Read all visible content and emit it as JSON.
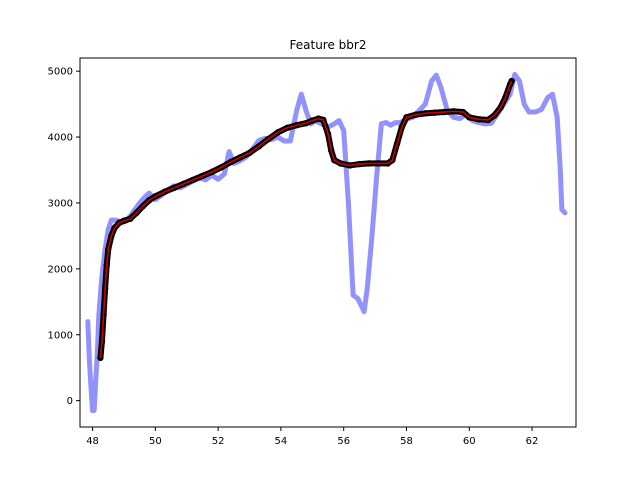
{
  "chart_data": {
    "type": "line",
    "title": "Feature bbr2",
    "xlabel": "",
    "ylabel": "",
    "xlim": [
      47.6,
      63.4
    ],
    "ylim": [
      -400,
      5200
    ],
    "x_ticks": [
      48,
      50,
      52,
      54,
      56,
      58,
      60,
      62
    ],
    "y_ticks": [
      0,
      1000,
      2000,
      3000,
      4000,
      5000
    ],
    "grid": false,
    "legend": "none",
    "series": [
      {
        "style": "raw",
        "color": "#8080ff",
        "points": [
          [
            47.85,
            1200
          ],
          [
            47.9,
            600
          ],
          [
            47.95,
            200
          ],
          [
            48.0,
            -150
          ],
          [
            48.05,
            -150
          ],
          [
            48.1,
            300
          ],
          [
            48.15,
            700
          ],
          [
            48.2,
            1300
          ],
          [
            48.3,
            1900
          ],
          [
            48.4,
            2300
          ],
          [
            48.5,
            2600
          ],
          [
            48.6,
            2740
          ],
          [
            48.75,
            2740
          ],
          [
            48.9,
            2700
          ],
          [
            49.05,
            2720
          ],
          [
            49.2,
            2800
          ],
          [
            49.35,
            2900
          ],
          [
            49.5,
            3000
          ],
          [
            49.65,
            3080
          ],
          [
            49.8,
            3150
          ],
          [
            49.9,
            3100
          ],
          [
            50.0,
            3050
          ],
          [
            50.2,
            3120
          ],
          [
            50.4,
            3200
          ],
          [
            50.6,
            3260
          ],
          [
            50.8,
            3230
          ],
          [
            51.0,
            3280
          ],
          [
            51.2,
            3330
          ],
          [
            51.4,
            3380
          ],
          [
            51.6,
            3350
          ],
          [
            51.8,
            3420
          ],
          [
            52.0,
            3360
          ],
          [
            52.2,
            3440
          ],
          [
            52.35,
            3780
          ],
          [
            52.5,
            3600
          ],
          [
            52.7,
            3640
          ],
          [
            52.9,
            3700
          ],
          [
            53.1,
            3820
          ],
          [
            53.3,
            3950
          ],
          [
            53.5,
            3980
          ],
          [
            53.7,
            3960
          ],
          [
            53.9,
            4000
          ],
          [
            54.1,
            3940
          ],
          [
            54.3,
            3940
          ],
          [
            54.5,
            4400
          ],
          [
            54.65,
            4650
          ],
          [
            54.8,
            4400
          ],
          [
            54.95,
            4200
          ],
          [
            55.1,
            4250
          ],
          [
            55.3,
            4200
          ],
          [
            55.5,
            4150
          ],
          [
            55.7,
            4200
          ],
          [
            55.85,
            4250
          ],
          [
            56.0,
            4100
          ],
          [
            56.15,
            3000
          ],
          [
            56.3,
            1600
          ],
          [
            56.45,
            1550
          ],
          [
            56.55,
            1450
          ],
          [
            56.65,
            1350
          ],
          [
            56.75,
            1700
          ],
          [
            56.9,
            2500
          ],
          [
            57.05,
            3400
          ],
          [
            57.2,
            4200
          ],
          [
            57.35,
            4220
          ],
          [
            57.5,
            4180
          ],
          [
            57.65,
            4220
          ],
          [
            57.8,
            4220
          ],
          [
            58.0,
            4270
          ],
          [
            58.2,
            4300
          ],
          [
            58.4,
            4400
          ],
          [
            58.6,
            4500
          ],
          [
            58.8,
            4850
          ],
          [
            58.95,
            4940
          ],
          [
            59.1,
            4750
          ],
          [
            59.3,
            4400
          ],
          [
            59.5,
            4300
          ],
          [
            59.7,
            4280
          ],
          [
            59.9,
            4350
          ],
          [
            60.1,
            4250
          ],
          [
            60.3,
            4220
          ],
          [
            60.5,
            4200
          ],
          [
            60.7,
            4210
          ],
          [
            60.9,
            4350
          ],
          [
            61.1,
            4500
          ],
          [
            61.3,
            4650
          ],
          [
            61.45,
            4950
          ],
          [
            61.6,
            4850
          ],
          [
            61.75,
            4500
          ],
          [
            61.9,
            4380
          ],
          [
            62.1,
            4380
          ],
          [
            62.3,
            4420
          ],
          [
            62.5,
            4600
          ],
          [
            62.65,
            4650
          ],
          [
            62.8,
            4300
          ],
          [
            62.9,
            3500
          ],
          [
            62.95,
            2900
          ],
          [
            63.05,
            2850
          ]
        ]
      },
      {
        "style": "smoothed",
        "color": "#000000",
        "points": [
          [
            48.25,
            650
          ],
          [
            48.3,
            900
          ],
          [
            48.35,
            1300
          ],
          [
            48.4,
            1700
          ],
          [
            48.45,
            2050
          ],
          [
            48.5,
            2300
          ],
          [
            48.6,
            2500
          ],
          [
            48.7,
            2620
          ],
          [
            48.85,
            2700
          ],
          [
            49.0,
            2730
          ],
          [
            49.2,
            2760
          ],
          [
            49.4,
            2850
          ],
          [
            49.6,
            2950
          ],
          [
            49.8,
            3040
          ],
          [
            50.0,
            3100
          ],
          [
            50.3,
            3170
          ],
          [
            50.6,
            3230
          ],
          [
            50.9,
            3290
          ],
          [
            51.2,
            3350
          ],
          [
            51.5,
            3410
          ],
          [
            51.8,
            3470
          ],
          [
            52.1,
            3540
          ],
          [
            52.4,
            3620
          ],
          [
            52.7,
            3690
          ],
          [
            53.0,
            3760
          ],
          [
            53.3,
            3860
          ],
          [
            53.6,
            3970
          ],
          [
            53.9,
            4070
          ],
          [
            54.2,
            4140
          ],
          [
            54.5,
            4180
          ],
          [
            54.8,
            4210
          ],
          [
            55.0,
            4250
          ],
          [
            55.2,
            4280
          ],
          [
            55.35,
            4260
          ],
          [
            55.5,
            4050
          ],
          [
            55.6,
            3800
          ],
          [
            55.7,
            3650
          ],
          [
            55.9,
            3600
          ],
          [
            56.2,
            3570
          ],
          [
            56.5,
            3590
          ],
          [
            56.8,
            3600
          ],
          [
            57.1,
            3600
          ],
          [
            57.4,
            3600
          ],
          [
            57.55,
            3650
          ],
          [
            57.7,
            3900
          ],
          [
            57.85,
            4150
          ],
          [
            58.0,
            4300
          ],
          [
            58.3,
            4340
          ],
          [
            58.6,
            4360
          ],
          [
            58.9,
            4370
          ],
          [
            59.2,
            4380
          ],
          [
            59.5,
            4390
          ],
          [
            59.8,
            4380
          ],
          [
            60.0,
            4300
          ],
          [
            60.3,
            4270
          ],
          [
            60.6,
            4260
          ],
          [
            60.8,
            4330
          ],
          [
            61.0,
            4450
          ],
          [
            61.15,
            4600
          ],
          [
            61.3,
            4800
          ],
          [
            61.35,
            4850
          ]
        ]
      }
    ]
  }
}
